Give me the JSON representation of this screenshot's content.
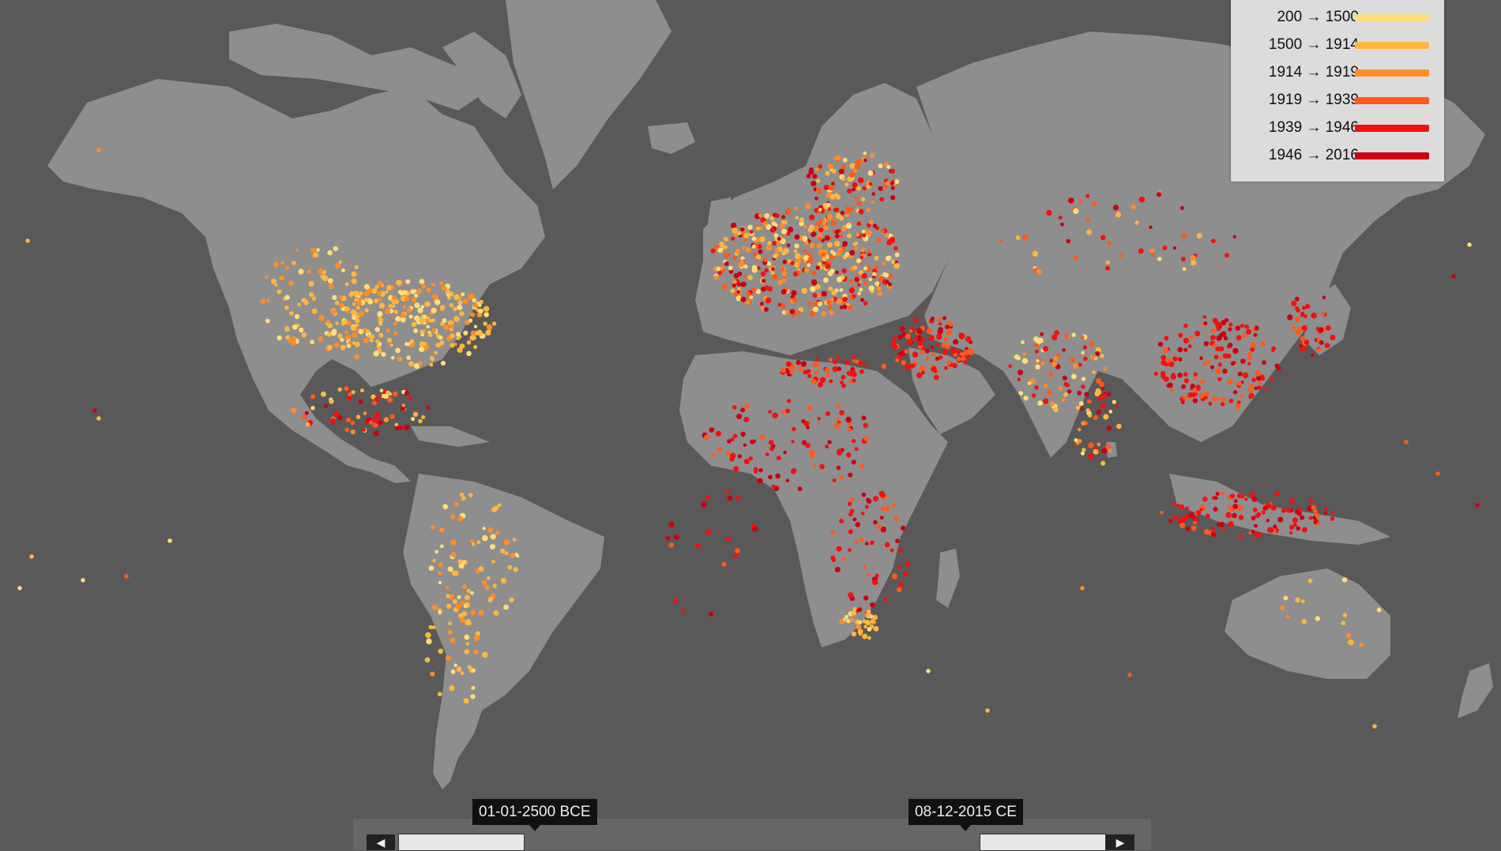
{
  "map": {
    "background_color": "#595959",
    "land_color": "#8e8e8e",
    "dot_colors": {
      "200_1500": "#ffdd78",
      "1500_1914": "#ffb63d",
      "1914_1919": "#ff8d2a",
      "1919_1939": "#ff5a1a",
      "1939_1946": "#f41010",
      "1946_2016": "#cc0012"
    }
  },
  "legend": {
    "items": [
      {
        "label": "200 → 1500",
        "color": "#ffdd78"
      },
      {
        "label": "1500 → 1914",
        "color": "#ffb63d"
      },
      {
        "label": "1914 → 1919",
        "color": "#ff8d2a"
      },
      {
        "label": "1919 → 1939",
        "color": "#ff5a1a"
      },
      {
        "label": "1939 → 1946",
        "color": "#f41010"
      },
      {
        "label": "1946 → 2016",
        "color": "#cc0012"
      }
    ]
  },
  "timeline": {
    "start_label": "01-01-2500 BCE",
    "end_label": "08-12-2015 CE",
    "left_arrow": "◀",
    "right_arrow": "▶"
  }
}
